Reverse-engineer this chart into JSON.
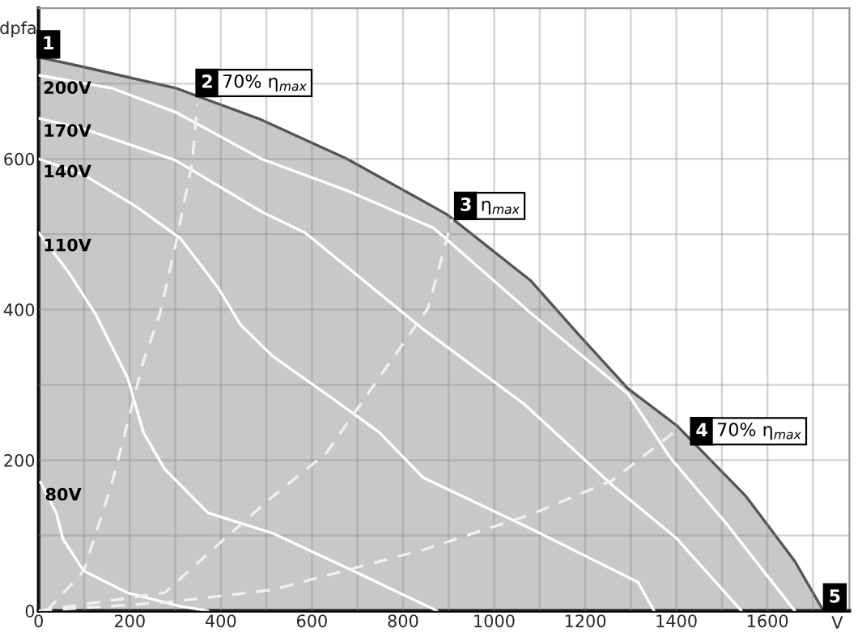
{
  "chart_data": {
    "type": "line",
    "xlabel": "V",
    "ylabel": "dpfa",
    "xlim": [
      0,
      1780
    ],
    "ylim": [
      0,
      800
    ],
    "xticks": [
      0,
      {
        "value": 100,
        "label": null
      },
      200,
      {
        "value": 300,
        "label": null
      },
      400,
      {
        "value": 500,
        "label": null
      },
      600,
      {
        "value": 700,
        "label": null
      },
      800,
      {
        "value": 900,
        "label": null
      },
      1000,
      {
        "value": 1100,
        "label": null
      },
      1200,
      {
        "value": 1300,
        "label": null
      },
      1400,
      {
        "value": 1500,
        "label": null
      },
      1600,
      {
        "value": 1700,
        "label": null
      }
    ],
    "yticks": [
      0,
      {
        "value": 100,
        "label": null
      },
      200,
      {
        "value": 300,
        "label": null
      },
      400,
      {
        "value": 500,
        "label": null
      },
      600,
      {
        "value": 700,
        "label": null
      }
    ],
    "grid": true,
    "series": [
      {
        "type": "area",
        "color": "#c8c8c8",
        "x": [
          0,
          99,
          301,
          489,
          677,
          868,
          897,
          1081,
          1188,
          1294,
          1401,
          1553,
          1660,
          1723
        ],
        "values": [
          735,
          722,
          694,
          652,
          600,
          536,
          526,
          438,
          365,
          295,
          246,
          152,
          66,
          0
        ]
      },
      {
        "name": "200V",
        "color": "#ffffff",
        "line_style": "solid",
        "x": [
          0,
          160,
          301,
          489,
          677,
          868,
          1081,
          1294,
          1387,
          1507,
          1660
        ],
        "values": [
          711,
          694,
          662,
          600,
          558,
          508,
          395,
          288,
          203,
          118,
          0
        ]
      },
      {
        "name": "170V",
        "color": "#ffffff",
        "line_style": "solid",
        "x": [
          0,
          99,
          301,
          489,
          585,
          844,
          1067,
          1259,
          1401,
          1543
        ],
        "values": [
          654,
          640,
          598,
          530,
          502,
          374,
          274,
          167,
          96,
          0
        ]
      },
      {
        "name": "140V",
        "color": "#ffffff",
        "line_style": "solid",
        "x": [
          0,
          99,
          216,
          312,
          394,
          443,
          514,
          631,
          748,
          844,
          1081,
          1316,
          1351
        ],
        "values": [
          600,
          579,
          536,
          494,
          429,
          380,
          338,
          288,
          237,
          177,
          109,
          38,
          0
        ]
      },
      {
        "name": "110V",
        "color": "#ffffff",
        "line_style": "solid",
        "x": [
          0,
          64,
          124,
          195,
          230,
          277,
          372,
          514,
          691,
          875
        ],
        "values": [
          502,
          451,
          395,
          310,
          237,
          188,
          130,
          103,
          53,
          0
        ]
      },
      {
        "name": "80V",
        "color": "#ffffff",
        "line_style": "solid",
        "x": [
          4,
          39,
          53,
          99,
          195,
          312,
          372
        ],
        "values": [
          171,
          130,
          96,
          53,
          24,
          6,
          0
        ]
      },
      {
        "color": "#f0f0f0",
        "line_style": "dashed",
        "x": [
          18,
          99,
          160,
          230,
          266,
          301,
          337,
          348
        ],
        "values": [
          0,
          53,
          167,
          331,
          394,
          487,
          594,
          672
        ]
      },
      {
        "color": "#f0f0f0",
        "line_style": "dashed",
        "x": [
          0,
          277,
          394,
          514,
          631,
          748,
          855,
          908
        ],
        "values": [
          0,
          24,
          88,
          152,
          209,
          310,
          402,
          520
        ]
      },
      {
        "color": "#f0f0f0",
        "line_style": "dashed",
        "x": [
          0,
          277,
          514,
          844,
          1081,
          1259,
          1401
        ],
        "values": [
          0,
          11,
          28,
          81,
          128,
          173,
          240
        ]
      }
    ],
    "annotations": [
      "1",
      "2",
      "70% η$_{max}$",
      "3",
      "η$_{max}$",
      "4",
      "70% η$_{max}$",
      "5"
    ]
  }
}
